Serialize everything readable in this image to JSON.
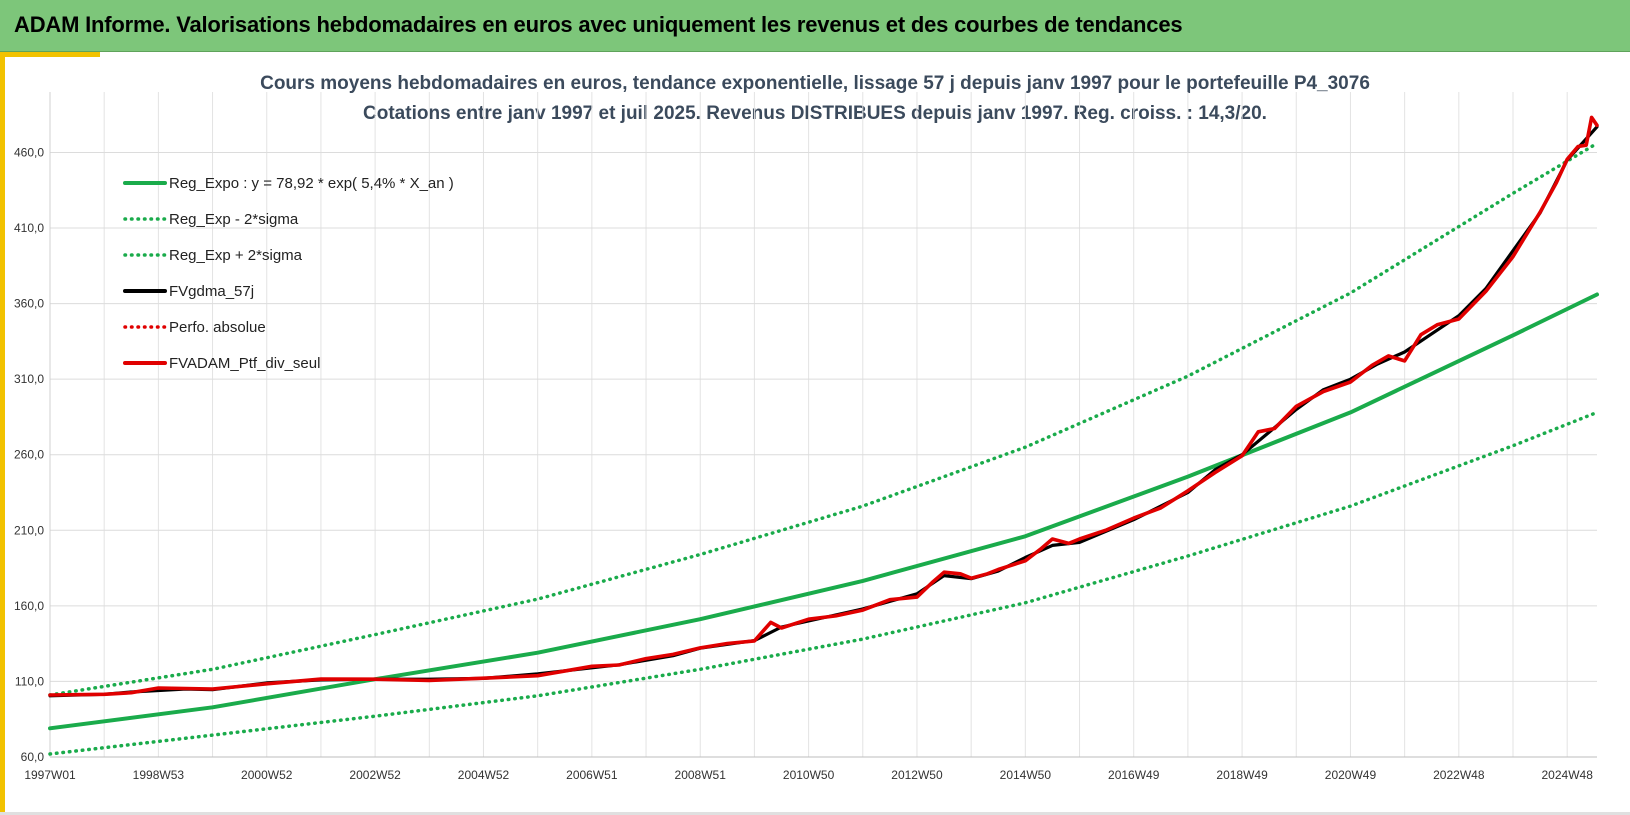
{
  "header": {
    "title": "ADAM Informe. Valorisations hebdomadaires en euros avec uniquement les revenus et des courbes de tendances"
  },
  "chart_data": {
    "type": "line",
    "title": "Cours moyens hebdomadaires  en euros, tendance exponentielle, lissage 57 j depuis janv 1997 pour le portefeuille P4_3076",
    "subtitle": "Cotations entre janv 1997 et juil 2025. Revenus DISTRIBUES depuis janv 1997. Reg. croiss. : 14,3/20.",
    "x_tick_labels": [
      "1997W01",
      "1998W53",
      "2000W52",
      "2002W52",
      "2004W52",
      "2006W51",
      "2008W51",
      "2010W50",
      "2012W50",
      "2014W50",
      "2016W49",
      "2018W49",
      "2020W49",
      "2022W48",
      "2024W48"
    ],
    "x_tick_years": [
      1997.0,
      1999.0,
      2001.0,
      2003.0,
      2005.0,
      2007.0,
      2009.0,
      2011.0,
      2013.0,
      2015.0,
      2017.0,
      2019.0,
      2021.0,
      2023.0,
      2025.0
    ],
    "x_range": [
      1997.0,
      2025.55
    ],
    "y_tick_labels": [
      "60,0",
      "110,0",
      "160,0",
      "210,0",
      "260,0",
      "310,0",
      "360,0",
      "410,0",
      "460,0"
    ],
    "y_ticks": [
      60,
      110,
      160,
      210,
      260,
      310,
      360,
      410,
      460
    ],
    "ylim": [
      60,
      500
    ],
    "grid": true,
    "legend_position": "top-left",
    "series": [
      {
        "name": "Reg_Expo : y = 78,92 * exp( 5,4% *  X_an )",
        "color": "#1aab4b",
        "style": "solid",
        "x": [
          1997.0,
          2000.0,
          2003.0,
          2006.0,
          2009.0,
          2012.0,
          2015.0,
          2018.0,
          2021.0,
          2024.0,
          2025.55
        ],
        "y": [
          79.0,
          92.9,
          111.5,
          129.0,
          151.2,
          176.5,
          206.0,
          245.5,
          288.0,
          339.0,
          366.0
        ]
      },
      {
        "name": "Reg_Exp - 2*sigma",
        "color": "#1aab4b",
        "style": "dotted",
        "x": [
          1997.0,
          2000.0,
          2003.0,
          2006.0,
          2009.0,
          2012.0,
          2015.0,
          2018.0,
          2021.0,
          2024.0,
          2025.55
        ],
        "y": [
          62.0,
          74.5,
          87.0,
          100.5,
          118.0,
          138.0,
          162.0,
          193.0,
          226.0,
          266.0,
          288.0
        ]
      },
      {
        "name": "Reg_Exp + 2*sigma",
        "color": "#1aab4b",
        "style": "dotted",
        "x": [
          1997.0,
          2000.0,
          2003.0,
          2006.0,
          2009.0,
          2012.0,
          2015.0,
          2018.0,
          2021.0,
          2024.0,
          2025.55
        ],
        "y": [
          101.0,
          118.0,
          141.0,
          164.5,
          194.0,
          226.0,
          265.0,
          312.0,
          367.0,
          433.0,
          466.0
        ]
      },
      {
        "name": "FVgdma_57j",
        "color": "#000000",
        "style": "solid",
        "x": [
          1997.0,
          1998.0,
          1998.5,
          1999.5,
          2000.0,
          2001.0,
          2002.0,
          2003.0,
          2004.0,
          2005.0,
          2006.0,
          2007.0,
          2007.5,
          2008.5,
          2009.0,
          2010.0,
          2010.5,
          2011.0,
          2012.0,
          2013.0,
          2013.5,
          2014.0,
          2014.5,
          2015.0,
          2015.5,
          2016.0,
          2017.0,
          2018.0,
          2018.5,
          2019.0,
          2019.5,
          2020.0,
          2020.5,
          2021.0,
          2021.5,
          2022.0,
          2022.5,
          2023.0,
          2023.5,
          2024.0,
          2024.5,
          2025.0,
          2025.55
        ],
        "y": [
          100.5,
          101.5,
          103.0,
          105.0,
          104.5,
          109.0,
          111.0,
          111.5,
          111.5,
          112.0,
          115.0,
          119.0,
          121.0,
          127.0,
          132.0,
          137.0,
          146.0,
          150.0,
          158.0,
          168.0,
          180.0,
          178.0,
          183.0,
          192.0,
          200.0,
          202.0,
          217.0,
          235.0,
          250.0,
          260.0,
          275.0,
          290.0,
          303.0,
          310.0,
          320.0,
          328.0,
          340.0,
          352.0,
          370.0,
          395.0,
          420.0,
          455.0,
          477.0
        ]
      },
      {
        "name": "Perfo. absolue",
        "color": "#e00000",
        "style": "dotted",
        "x": [],
        "y": []
      },
      {
        "name": "FVADAM_Ptf_div_seul",
        "color": "#e00000",
        "style": "solid",
        "x": [
          1997.0,
          1998.0,
          1998.5,
          1999.0,
          1999.5,
          2000.0,
          2001.0,
          2002.0,
          2003.0,
          2004.0,
          2005.0,
          2006.0,
          2007.0,
          2007.5,
          2008.0,
          2008.5,
          2009.0,
          2009.5,
          2010.0,
          2010.3,
          2010.5,
          2011.0,
          2011.5,
          2012.0,
          2012.5,
          2013.0,
          2013.3,
          2013.5,
          2013.8,
          2014.0,
          2014.3,
          2014.5,
          2015.0,
          2015.3,
          2015.5,
          2015.8,
          2016.0,
          2016.5,
          2017.0,
          2017.5,
          2018.0,
          2018.5,
          2019.0,
          2019.3,
          2019.6,
          2020.0,
          2020.5,
          2021.0,
          2021.4,
          2021.7,
          2022.0,
          2022.3,
          2022.6,
          2023.0,
          2023.5,
          2024.0,
          2024.5,
          2024.8,
          2025.0,
          2025.2,
          2025.35,
          2025.45,
          2025.55
        ],
        "y": [
          101.0,
          101.0,
          103.5,
          104.5,
          106.5,
          104.0,
          109.0,
          111.5,
          111.0,
          111.5,
          111.0,
          115.0,
          119.0,
          121.5,
          125.0,
          127.5,
          133.0,
          134.0,
          138.0,
          148.0,
          146.0,
          151.0,
          153.0,
          158.0,
          163.0,
          167.0,
          175.0,
          183.0,
          181.0,
          178.0,
          182.0,
          183.0,
          191.0,
          197.0,
          205.0,
          201.0,
          204.0,
          211.0,
          217.0,
          226.0,
          235.0,
          249.0,
          259.0,
          275.0,
          278.0,
          291.0,
          303.0,
          307.0,
          320.0,
          325.0,
          322.0,
          340.0,
          345.0,
          351.0,
          367.0,
          392.0,
          420.0,
          440.0,
          456.0,
          463.0,
          466.0,
          482.0,
          478.0
        ]
      }
    ]
  }
}
